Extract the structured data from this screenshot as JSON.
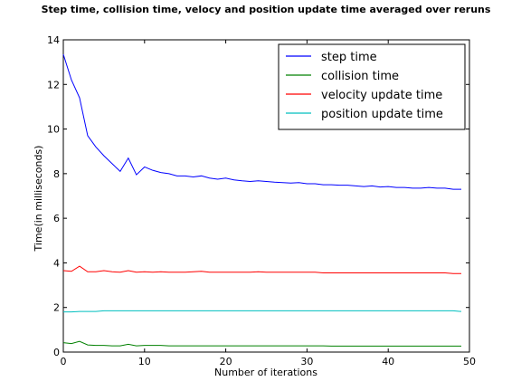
{
  "chart_data": {
    "type": "line",
    "title": "Step time, collision time, velocy and position update time averaged over reruns",
    "xlabel": "Number of iterations",
    "ylabel": "Time(in milliseconds)",
    "xlim": [
      0,
      50
    ],
    "ylim": [
      0,
      14
    ],
    "xticks": [
      "0",
      "10",
      "20",
      "30",
      "40",
      "50"
    ],
    "yticks": [
      "0",
      "2",
      "4",
      "6",
      "8",
      "10",
      "12",
      "14"
    ],
    "legend_position": "top-right",
    "grid": false,
    "x": [
      0,
      1,
      2,
      3,
      4,
      5,
      6,
      7,
      8,
      9,
      10,
      11,
      12,
      13,
      14,
      15,
      16,
      17,
      18,
      19,
      20,
      21,
      22,
      23,
      24,
      25,
      26,
      27,
      28,
      29,
      30,
      31,
      32,
      33,
      34,
      35,
      36,
      37,
      38,
      39,
      40,
      41,
      42,
      43,
      44,
      45,
      46,
      47,
      48,
      49
    ],
    "series": [
      {
        "name": "step time",
        "color": "#0000ff",
        "values": [
          13.35,
          12.2,
          11.4,
          9.7,
          9.2,
          8.8,
          8.45,
          8.1,
          8.7,
          7.95,
          8.3,
          8.15,
          8.05,
          8.0,
          7.9,
          7.9,
          7.85,
          7.9,
          7.8,
          7.75,
          7.8,
          7.72,
          7.68,
          7.65,
          7.68,
          7.65,
          7.62,
          7.6,
          7.58,
          7.6,
          7.55,
          7.55,
          7.5,
          7.5,
          7.48,
          7.48,
          7.45,
          7.42,
          7.45,
          7.4,
          7.42,
          7.38,
          7.38,
          7.35,
          7.35,
          7.38,
          7.35,
          7.35,
          7.3,
          7.3
        ]
      },
      {
        "name": "collision time",
        "color": "#008000",
        "values": [
          0.42,
          0.38,
          0.48,
          0.32,
          0.3,
          0.3,
          0.28,
          0.28,
          0.35,
          0.28,
          0.3,
          0.3,
          0.3,
          0.28,
          0.28,
          0.28,
          0.28,
          0.28,
          0.28,
          0.28,
          0.28,
          0.28,
          0.28,
          0.28,
          0.28,
          0.28,
          0.28,
          0.28,
          0.28,
          0.28,
          0.28,
          0.28,
          0.28,
          0.27,
          0.27,
          0.27,
          0.27,
          0.27,
          0.27,
          0.27,
          0.27,
          0.27,
          0.27,
          0.27,
          0.27,
          0.27,
          0.27,
          0.27,
          0.27,
          0.27
        ]
      },
      {
        "name": "velocity update time",
        "color": "#ff0000",
        "values": [
          3.65,
          3.62,
          3.85,
          3.6,
          3.6,
          3.65,
          3.6,
          3.58,
          3.65,
          3.58,
          3.6,
          3.58,
          3.6,
          3.58,
          3.58,
          3.58,
          3.6,
          3.62,
          3.58,
          3.58,
          3.58,
          3.58,
          3.58,
          3.58,
          3.6,
          3.58,
          3.58,
          3.58,
          3.58,
          3.58,
          3.58,
          3.58,
          3.55,
          3.55,
          3.55,
          3.55,
          3.55,
          3.55,
          3.55,
          3.55,
          3.55,
          3.55,
          3.55,
          3.55,
          3.55,
          3.55,
          3.55,
          3.55,
          3.52,
          3.52
        ]
      },
      {
        "name": "position update time",
        "color": "#00bfbf",
        "values": [
          1.8,
          1.8,
          1.82,
          1.82,
          1.82,
          1.85,
          1.85,
          1.85,
          1.85,
          1.85,
          1.85,
          1.85,
          1.85,
          1.85,
          1.85,
          1.85,
          1.85,
          1.85,
          1.85,
          1.85,
          1.85,
          1.85,
          1.85,
          1.85,
          1.85,
          1.85,
          1.85,
          1.85,
          1.85,
          1.85,
          1.85,
          1.85,
          1.85,
          1.85,
          1.85,
          1.85,
          1.85,
          1.85,
          1.85,
          1.85,
          1.85,
          1.85,
          1.85,
          1.85,
          1.85,
          1.85,
          1.85,
          1.85,
          1.85,
          1.82
        ]
      }
    ]
  }
}
